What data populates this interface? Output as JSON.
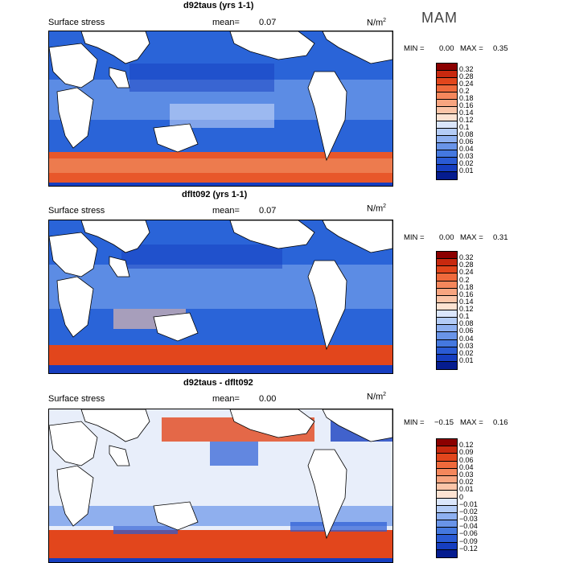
{
  "season": "MAM",
  "panels": [
    {
      "title": "d92taus (yrs 1-1)",
      "variable": "Surface stress",
      "mean_label": "mean=",
      "mean_value": "0.07",
      "units": "N/m",
      "units_exp": "2",
      "min_label": "MIN =",
      "min_value": "0.00",
      "max_label": "MAX =",
      "max_value": "0.35",
      "levels": [
        "0.32",
        "0.28",
        "0.24",
        "0.2",
        "0.18",
        "0.16",
        "0.14",
        "0.12",
        "0.1",
        "0.08",
        "0.06",
        "0.04",
        "0.03",
        "0.02",
        "0.01"
      ],
      "colors": [
        "#8b0000",
        "#c8290f",
        "#e2461c",
        "#ef6a3c",
        "#f5875c",
        "#f8a580",
        "#fbc5a8",
        "#fde3d2",
        "#dbe6fb",
        "#b4ccf6",
        "#8eb0f0",
        "#6994e8",
        "#4478df",
        "#2a5bd4",
        "#163ec0",
        "#051c8f"
      ]
    },
    {
      "title": "dflt092 (yrs 1-1)",
      "variable": "Surface stress",
      "mean_label": "mean=",
      "mean_value": "0.07",
      "units": "N/m",
      "units_exp": "2",
      "min_label": "MIN =",
      "min_value": "0.00",
      "max_label": "MAX =",
      "max_value": "0.31",
      "levels": [
        "0.32",
        "0.28",
        "0.24",
        "0.2",
        "0.18",
        "0.16",
        "0.14",
        "0.12",
        "0.1",
        "0.08",
        "0.06",
        "0.04",
        "0.03",
        "0.02",
        "0.01"
      ],
      "colors": [
        "#8b0000",
        "#c8290f",
        "#e2461c",
        "#ef6a3c",
        "#f5875c",
        "#f8a580",
        "#fbc5a8",
        "#fde3d2",
        "#dbe6fb",
        "#b4ccf6",
        "#8eb0f0",
        "#6994e8",
        "#4478df",
        "#2a5bd4",
        "#163ec0",
        "#051c8f"
      ]
    },
    {
      "title": "d92taus - dflt092",
      "variable": "Surface stress",
      "mean_label": "mean=",
      "mean_value": "0.00",
      "units": "N/m",
      "units_exp": "2",
      "min_label": "MIN =",
      "min_value": "−0.15",
      "max_label": "MAX =",
      "max_value": "0.16",
      "levels": [
        "0.12",
        "0.09",
        "0.06",
        "0.04",
        "0.03",
        "0.02",
        "0.01",
        "0",
        "−0.01",
        "−0.02",
        "−0.03",
        "−0.04",
        "−0.06",
        "−0.09",
        "−0.12"
      ],
      "colors": [
        "#8b0000",
        "#c8290f",
        "#e2461c",
        "#ef6a3c",
        "#f5875c",
        "#f8a580",
        "#fbc5a8",
        "#fde3d2",
        "#dbe6fb",
        "#b4ccf6",
        "#8eb0f0",
        "#6994e8",
        "#4478df",
        "#2a5bd4",
        "#163ec0",
        "#051c8f"
      ]
    }
  ]
}
